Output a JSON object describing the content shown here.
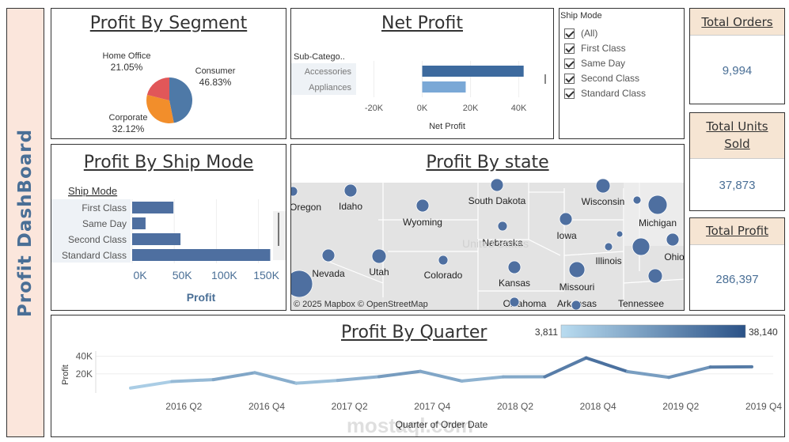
{
  "dashboard_title": "Profit DashBoard",
  "profit_by_segment": {
    "title": "Profit By Segment",
    "chart_data": {
      "type": "pie",
      "slices": [
        {
          "label": "Consumer",
          "percent": "46.83%",
          "value": 46.83,
          "color": "#4e79a7"
        },
        {
          "label": "Corporate",
          "percent": "32.12%",
          "value": 32.12,
          "color": "#f28e2b"
        },
        {
          "label": "Home Office",
          "percent": "21.05%",
          "value": 21.05,
          "color": "#e15759"
        }
      ]
    }
  },
  "net_profit": {
    "title": "Net Profit",
    "chart_data": {
      "type": "bar",
      "dimension_header": "Sub-Catego..",
      "categories": [
        "Accessories",
        "Appliances"
      ],
      "values": [
        42000,
        18000
      ],
      "colors": [
        "#3d6a9e",
        "#7aa8d6"
      ],
      "xlabel": "Net Profit",
      "ticks": [
        "-20K",
        "0K",
        "20K",
        "40K"
      ],
      "tick_values": [
        -20000,
        0,
        20000,
        40000
      ],
      "xlim": [
        -30000,
        48000
      ]
    }
  },
  "ship_mode_filter": {
    "title": "Ship Mode",
    "options": [
      "(All)",
      "First Class",
      "Same Day",
      "Second Class",
      "Standard Class"
    ]
  },
  "kpis": {
    "total_orders": {
      "label": "Total Orders",
      "value": "9,994"
    },
    "total_units_sold": {
      "label_line1": "Total Units",
      "label_line2": "Sold",
      "value": "37,873"
    },
    "total_profit": {
      "label": "Total Profit",
      "value": "286,397"
    }
  },
  "profit_by_ship_mode": {
    "title": "Profit By Ship Mode",
    "chart_data": {
      "type": "bar",
      "dimension_header": "Ship Mode",
      "categories": [
        "First Class",
        "Same Day",
        "Second Class",
        "Standard Class"
      ],
      "values": [
        49000,
        15900,
        57400,
        164000
      ],
      "color": "#4e6fa0",
      "xlabel": "Profit",
      "ticks": [
        "0K",
        "50K",
        "100K",
        "150K"
      ],
      "tick_values": [
        0,
        50000,
        100000,
        150000
      ],
      "xlim": [
        0,
        172000
      ]
    }
  },
  "profit_by_state": {
    "title": "Profit By state",
    "attribution": "© 2025 Mapbox © OpenStreetMap",
    "labels": [
      "Idaho",
      "Oregon",
      "Wyoming",
      "South Dakota",
      "Wisconsin",
      "Michigan",
      "Nebraska",
      "Iowa",
      "Illinois",
      "Ohio",
      "Nevada",
      "Utah",
      "Colorado",
      "Kansas",
      "Missouri",
      "Oklahoma",
      "Arkansas",
      "Tennessee",
      "United States"
    ],
    "marker_color": "#4e6fa0",
    "land_color": "#e3e3e3"
  },
  "profit_by_quarter": {
    "title": "Profit By Quarter",
    "legend_min": "3,811",
    "legend_max": "38,140",
    "chart_data": {
      "type": "line",
      "xlabel": "Quarter of Order Date",
      "ylabel": "Profit",
      "y_ticks": [
        "20K",
        "40K"
      ],
      "y_tick_values": [
        20000,
        40000
      ],
      "ylim": [
        0,
        45000
      ],
      "x_tick_labels": [
        "2016 Q2",
        "2016 Q4",
        "2017 Q2",
        "2017 Q4",
        "2018 Q2",
        "2018 Q4",
        "2019 Q2",
        "2019 Q4"
      ],
      "x": [
        "2016 Q1",
        "2016 Q2",
        "2016 Q3",
        "2016 Q4",
        "2017 Q1",
        "2017 Q2",
        "2017 Q3",
        "2017 Q4",
        "2018 Q1",
        "2018 Q2",
        "2018 Q3",
        "2018 Q4",
        "2019 Q1",
        "2019 Q2",
        "2019 Q3",
        "2019 Q4"
      ],
      "values": [
        3811,
        11200,
        13400,
        21300,
        9300,
        12500,
        16800,
        22800,
        11800,
        16500,
        16600,
        38140,
        22500,
        16000,
        27700,
        28000
      ],
      "color_low": "#b9dcf0",
      "color_high": "#2b5287"
    }
  },
  "watermark": "mostaql.com"
}
